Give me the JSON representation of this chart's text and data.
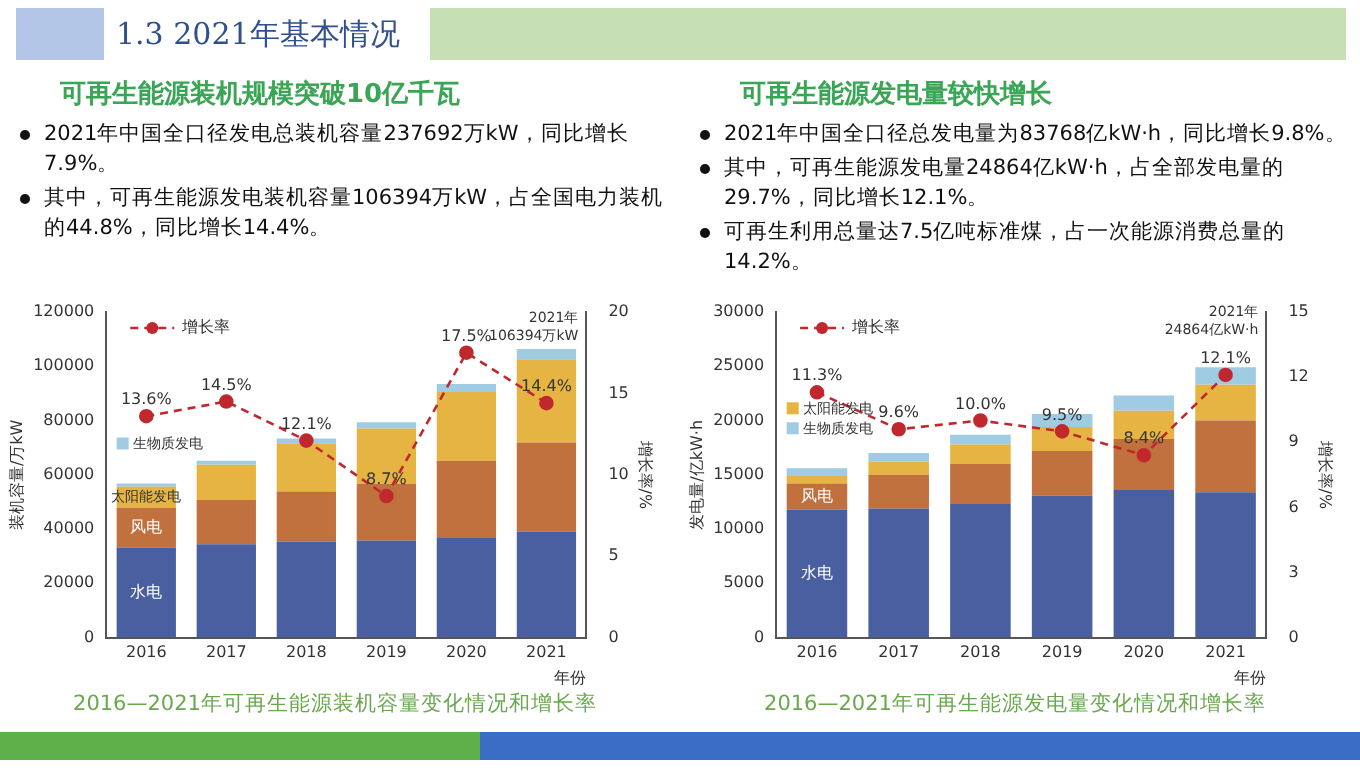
{
  "chart_data": [
    {
      "type": "other",
      "title": "1.3 2021年基本情况"
    },
    {
      "type": "other",
      "title": "可再生能源装机规模突破10亿千瓦",
      "annotations": [
        "2021年中国全口径发电总装机容量237692万kW，同比增长7.9%。",
        "其中，可再生能源发电装机容量106394万kW，占全国电力装机的44.8%，同比增长14.4%。"
      ]
    },
    {
      "type": "bar",
      "categories": [
        "2016",
        "2017",
        "2018",
        "2019",
        "2020",
        "2021"
      ],
      "xlabel": "年份",
      "ylabel": "装机容量/万kW",
      "y2label": "增长率/%",
      "stacked": true,
      "legend": "top left",
      "marker": "circle",
      "line_style": "dashed",
      "ylim": [
        0,
        120000
      ],
      "yticks": [
        0,
        20000,
        40000,
        60000,
        80000,
        100000,
        120000
      ],
      "y2lim": [
        0,
        20
      ],
      "y2ticks": [
        0,
        5,
        10,
        15,
        20
      ],
      "series": [
        {
          "name": "水电",
          "color": "#4a5f9f",
          "values": [
            33200,
            34400,
            35400,
            35800,
            37000,
            39100
          ]
        },
        {
          "name": "风电",
          "color": "#c1713e",
          "values": [
            14700,
            16300,
            18400,
            20900,
            28200,
            32800
          ]
        },
        {
          "name": "太阳能发电",
          "color": "#e6b443",
          "values": [
            7700,
            13000,
            17800,
            20400,
            25300,
            30700
          ]
        },
        {
          "name": "生物质发电",
          "color": "#9fcbe3",
          "values": [
            1200,
            1500,
            1800,
            2300,
            3000,
            3800
          ]
        },
        {
          "name": "增长率",
          "type": "line",
          "axis": "y2",
          "color": "#c0282d",
          "values": [
            13.6,
            14.5,
            12.1,
            8.7,
            17.5,
            14.4
          ],
          "value_labels": [
            "13.6%",
            "14.5%",
            "12.1%",
            "8.7%",
            "17.5%",
            "14.4%"
          ]
        }
      ],
      "annotations": [
        {
          "text": "2021年\n106394万kW",
          "x": "2021",
          "y": 106394
        },
        "2016—2021年可再生能源装机容量变化情况和增长率"
      ]
    },
    {
      "type": "other",
      "title": "可再生能源发电量较快增长",
      "annotations": [
        "2021年中国全口径总发电量为83768亿kW·h，同比增长9.8%。",
        "其中，可再生能源发电量24864亿kW·h，占全部发电量的29.7%，同比增长12.1%。",
        "可再生利用总量达7.5亿吨标准煤，占一次能源消费总量的14.2%。"
      ]
    },
    {
      "type": "bar",
      "categories": [
        "2016",
        "2017",
        "2018",
        "2019",
        "2020",
        "2021"
      ],
      "xlabel": "年份",
      "ylabel": "发电量/亿kW·h",
      "y2label": "增长率/%",
      "stacked": true,
      "legend": "top left",
      "marker": "circle",
      "line_style": "dashed",
      "ylim": [
        0,
        30000
      ],
      "yticks": [
        0,
        5000,
        10000,
        15000,
        20000,
        25000,
        30000
      ],
      "y2lim": [
        0,
        15
      ],
      "y2ticks": [
        0,
        3,
        6,
        9,
        12,
        15
      ],
      "series": [
        {
          "name": "水电",
          "color": "#4a5f9f",
          "values": [
            11800,
            11900,
            12300,
            13100,
            13600,
            13400
          ]
        },
        {
          "name": "风电",
          "color": "#c1713e",
          "values": [
            2400,
            3100,
            3700,
            4100,
            4700,
            6600
          ]
        },
        {
          "name": "太阳能发电",
          "color": "#e6b443",
          "values": [
            700,
            1200,
            1800,
            2200,
            2600,
            3300
          ]
        },
        {
          "name": "生物质发电",
          "color": "#9fcbe3",
          "values": [
            700,
            800,
            900,
            1200,
            1400,
            1600
          ]
        },
        {
          "name": "增长率",
          "type": "line",
          "axis": "y2",
          "color": "#c0282d",
          "values": [
            11.3,
            9.6,
            10.0,
            9.5,
            8.4,
            12.1
          ],
          "value_labels": [
            "11.3%",
            "9.6%",
            "10.0%",
            "9.5%",
            "8.4%",
            "12.1%"
          ]
        }
      ],
      "annotations": [
        {
          "text": "2021年\n24864亿kW·h",
          "x": "2021",
          "y": 24864
        },
        "2016—2021年可再生能源发电量变化情况和增长率"
      ]
    }
  ]
}
